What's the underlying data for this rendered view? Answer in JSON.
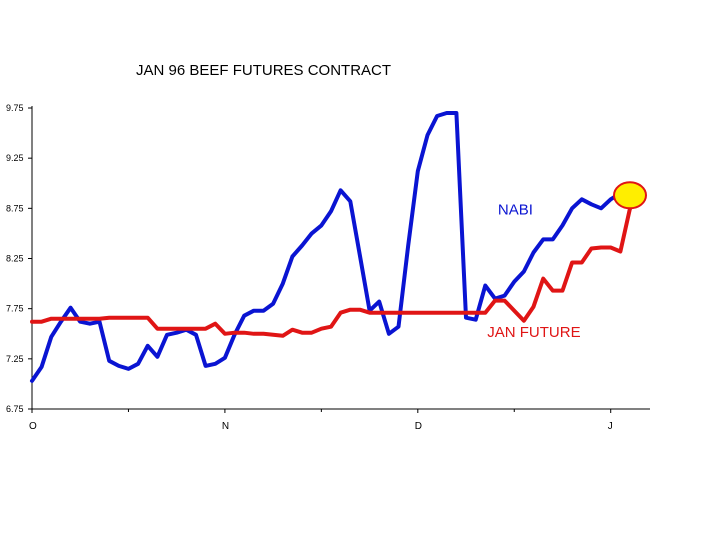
{
  "chart_data": {
    "type": "line",
    "title": "JAN 96 BEEF FUTURES CONTRACT",
    "xlabel": "",
    "ylabel": "",
    "ylim": [
      6.75,
      9.75
    ],
    "yticks": [
      "9.75",
      "9.25",
      "8.75",
      "8.25",
      "7.75",
      "7.25",
      "6.75"
    ],
    "xticks": [
      {
        "label": "O",
        "x": 0
      },
      {
        "label": "N",
        "x": 20
      },
      {
        "label": "D",
        "x": 40
      },
      {
        "label": "J",
        "x": 60
      }
    ],
    "xlim": [
      0,
      62
    ],
    "grid": false,
    "series": [
      {
        "name": "NABI",
        "color": "#0a14d2",
        "x": [
          0,
          1,
          2,
          3,
          4,
          5,
          6,
          7,
          8,
          9,
          10,
          11,
          12,
          13,
          14,
          15,
          16,
          17,
          18,
          19,
          20,
          21,
          22,
          23,
          24,
          25,
          26,
          27,
          28,
          29,
          30,
          31,
          32,
          33,
          34,
          35,
          36,
          37,
          38,
          39,
          40,
          41,
          42,
          43,
          44,
          45,
          46,
          47,
          48,
          49,
          50,
          51,
          52,
          53,
          54,
          55,
          56,
          57,
          58,
          59,
          60,
          61,
          62
        ],
        "values": [
          7.03,
          7.17,
          7.47,
          7.62,
          7.76,
          7.62,
          7.6,
          7.62,
          7.23,
          7.18,
          7.15,
          7.2,
          7.38,
          7.27,
          7.49,
          7.51,
          7.54,
          7.49,
          7.18,
          7.2,
          7.26,
          7.49,
          7.68,
          7.73,
          7.73,
          7.8,
          8.0,
          8.27,
          8.38,
          8.5,
          8.58,
          8.72,
          8.93,
          8.82,
          8.28,
          7.73,
          7.82,
          7.5,
          7.57,
          8.38,
          9.12,
          9.48,
          9.67,
          9.7,
          9.7,
          7.66,
          7.64,
          7.98,
          7.85,
          7.88,
          8.02,
          8.12,
          8.31,
          8.44,
          8.44,
          8.58,
          8.75,
          8.84,
          8.79,
          8.75,
          8.84,
          8.9,
          8.75
        ]
      },
      {
        "name": "JAN FUTURE",
        "color": "#e01515",
        "x": [
          0,
          1,
          2,
          3,
          4,
          5,
          6,
          7,
          8,
          9,
          10,
          11,
          12,
          13,
          14,
          15,
          16,
          17,
          18,
          19,
          20,
          21,
          22,
          23,
          24,
          25,
          26,
          27,
          28,
          29,
          30,
          31,
          32,
          33,
          34,
          35,
          36,
          37,
          38,
          39,
          40,
          41,
          42,
          43,
          44,
          45,
          46,
          47,
          48,
          49,
          50,
          51,
          52,
          53,
          54,
          55,
          56,
          57,
          58,
          59,
          60,
          61,
          62
        ],
        "values": [
          7.62,
          7.62,
          7.65,
          7.65,
          7.65,
          7.65,
          7.65,
          7.65,
          7.66,
          7.66,
          7.66,
          7.66,
          7.66,
          7.55,
          7.55,
          7.55,
          7.55,
          7.55,
          7.55,
          7.6,
          7.5,
          7.51,
          7.51,
          7.5,
          7.5,
          7.49,
          7.48,
          7.54,
          7.51,
          7.51,
          7.55,
          7.57,
          7.71,
          7.74,
          7.74,
          7.71,
          7.71,
          7.71,
          7.71,
          7.71,
          7.71,
          7.71,
          7.71,
          7.71,
          7.71,
          7.71,
          7.71,
          7.71,
          7.83,
          7.83,
          7.73,
          7.63,
          7.77,
          8.05,
          7.93,
          7.93,
          8.21,
          8.21,
          8.35,
          8.36,
          8.36,
          8.32,
          8.75
        ]
      }
    ],
    "annotations": [
      {
        "text": "NABI",
        "series": "NABI",
        "x": 48.3,
        "y": 8.69
      },
      {
        "text": "JAN FUTURE",
        "series": "JAN FUTURE",
        "x": 47.2,
        "y": 7.47
      }
    ],
    "highlight": {
      "x": 62,
      "y": 8.88,
      "color": "#ffee00"
    }
  }
}
